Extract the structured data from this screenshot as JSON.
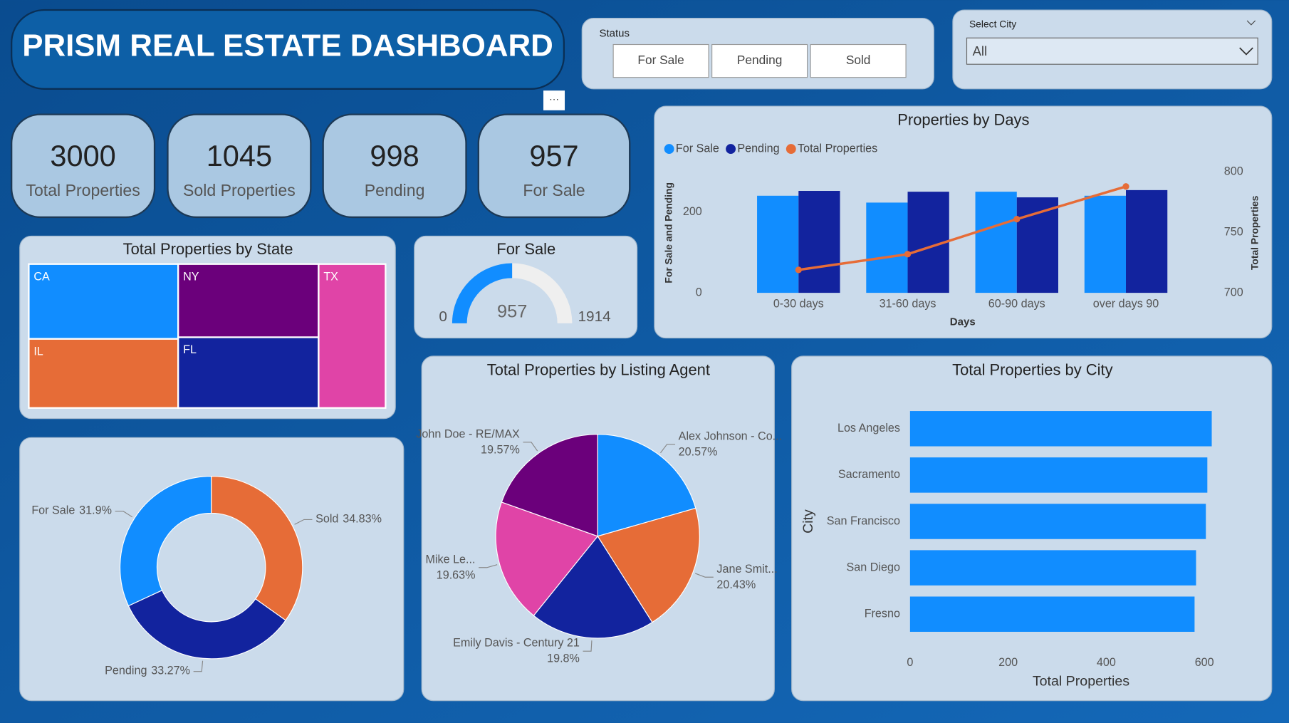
{
  "header": {
    "title": "PRISM REAL ESTATE DASHBOARD"
  },
  "status_slicer": {
    "label": "Status",
    "options": [
      "For Sale",
      "Pending",
      "Sold"
    ]
  },
  "city_slicer": {
    "label": "Select City",
    "selected": "All"
  },
  "kpis": [
    {
      "value": 3000,
      "label": "Total Properties"
    },
    {
      "value": 1045,
      "label": "Sold Properties"
    },
    {
      "value": 998,
      "label": "Pending"
    },
    {
      "value": 957,
      "label": "For Sale"
    }
  ],
  "chart_data": [
    {
      "type": "combo",
      "title": "Properties by Days",
      "x_label": "Days",
      "y_label": "For Sale and Pending",
      "y2_label": "Total Properties",
      "categories": [
        "0-30 days",
        "31-60 days",
        "60-90 days",
        "over days 90"
      ],
      "series": [
        {
          "name": "For Sale",
          "color": "#118dff",
          "values": [
            241,
            224,
            251,
            241
          ]
        },
        {
          "name": "Pending",
          "color": "#12239e",
          "values": [
            253,
            251,
            237,
            255
          ]
        },
        {
          "name": "Total Properties",
          "color": "#e66c37",
          "values": [
            719,
            732,
            761,
            788
          ],
          "axis": "y2"
        }
      ],
      "ylim": [
        0,
        300
      ],
      "yticks": [
        0,
        200
      ],
      "y2lim": [
        700,
        800
      ],
      "y2ticks": [
        700,
        750,
        800
      ],
      "legend": "top-left"
    },
    {
      "type": "treemap",
      "title": "Total Properties by State",
      "categories": [
        "CA",
        "IL",
        "NY",
        "FL",
        "TX"
      ],
      "values": [
        650,
        600,
        598,
        577,
        560
      ],
      "colors": [
        "#118dff",
        "#e66c37",
        "#6b007b",
        "#12239e",
        "#e044a7"
      ]
    },
    {
      "type": "gauge",
      "title": "For Sale",
      "value": 957,
      "min": 0,
      "max": 1914,
      "color": "#118dff"
    },
    {
      "type": "donut",
      "categories": [
        "Sold",
        "Pending",
        "For Sale"
      ],
      "values": [
        34.83,
        33.27,
        31.9
      ],
      "value_labels": [
        "34.83%",
        "33.27%",
        "31.9%"
      ],
      "colors": [
        "#e66c37",
        "#12239e",
        "#118dff"
      ]
    },
    {
      "type": "pie",
      "title": "Total Properties by Listing Agent",
      "categories": [
        "Alex Johnson - Co...",
        "Jane Smit...",
        "Emily Davis - Century 21",
        "Mike Le...",
        "John Doe - RE/MAX"
      ],
      "values": [
        20.57,
        20.43,
        19.8,
        19.63,
        19.57
      ],
      "value_labels": [
        "20.57%",
        "20.43%",
        "19.8%",
        "19.63%",
        "19.57%"
      ],
      "colors": [
        "#118dff",
        "#e66c37",
        "#12239e",
        "#e044a7",
        "#6b007b"
      ]
    },
    {
      "type": "hbar",
      "title": "Total Properties by City",
      "x_label": "Total Properties",
      "y_label": "City",
      "categories": [
        "Los Angeles",
        "Sacramento",
        "San Francisco",
        "San Diego",
        "Fresno"
      ],
      "values": [
        615,
        606,
        603,
        583,
        580
      ],
      "color": "#118dff",
      "xlim": [
        0,
        620
      ],
      "xticks": [
        0,
        200,
        400,
        600
      ]
    }
  ]
}
